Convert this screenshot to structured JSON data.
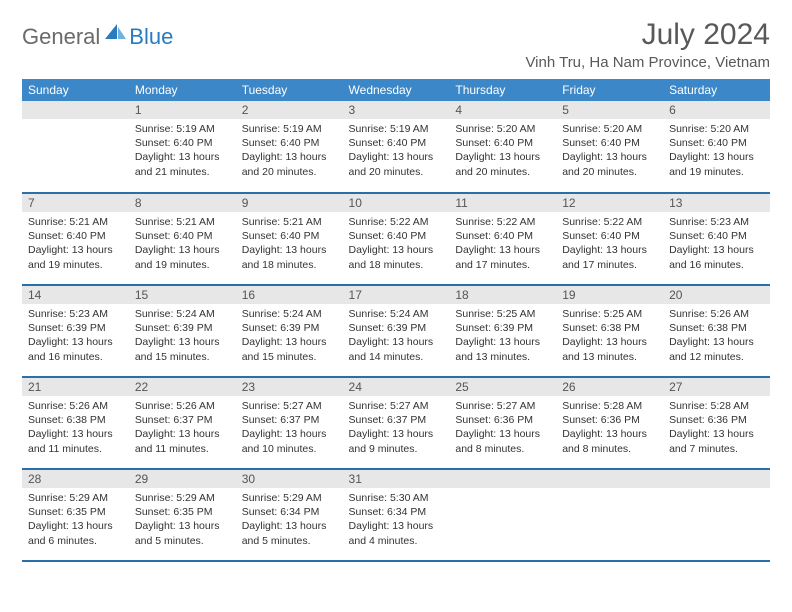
{
  "logo": {
    "general": "General",
    "blue": "Blue"
  },
  "title": "July 2024",
  "location": "Vinh Tru, Ha Nam Province, Vietnam",
  "colors": {
    "header_bg": "#3b87c8",
    "daynum_bg": "#e7e7e7",
    "row_border": "#2a6fa8",
    "title_color": "#595959",
    "logo_gray": "#6a6a6a",
    "logo_blue": "#2a7bbf"
  },
  "weekdays": [
    "Sunday",
    "Monday",
    "Tuesday",
    "Wednesday",
    "Thursday",
    "Friday",
    "Saturday"
  ],
  "weeks": [
    [
      {
        "n": "",
        "sr": "",
        "ss": "",
        "dl": ""
      },
      {
        "n": "1",
        "sr": "Sunrise: 5:19 AM",
        "ss": "Sunset: 6:40 PM",
        "dl": "Daylight: 13 hours and 21 minutes."
      },
      {
        "n": "2",
        "sr": "Sunrise: 5:19 AM",
        "ss": "Sunset: 6:40 PM",
        "dl": "Daylight: 13 hours and 20 minutes."
      },
      {
        "n": "3",
        "sr": "Sunrise: 5:19 AM",
        "ss": "Sunset: 6:40 PM",
        "dl": "Daylight: 13 hours and 20 minutes."
      },
      {
        "n": "4",
        "sr": "Sunrise: 5:20 AM",
        "ss": "Sunset: 6:40 PM",
        "dl": "Daylight: 13 hours and 20 minutes."
      },
      {
        "n": "5",
        "sr": "Sunrise: 5:20 AM",
        "ss": "Sunset: 6:40 PM",
        "dl": "Daylight: 13 hours and 20 minutes."
      },
      {
        "n": "6",
        "sr": "Sunrise: 5:20 AM",
        "ss": "Sunset: 6:40 PM",
        "dl": "Daylight: 13 hours and 19 minutes."
      }
    ],
    [
      {
        "n": "7",
        "sr": "Sunrise: 5:21 AM",
        "ss": "Sunset: 6:40 PM",
        "dl": "Daylight: 13 hours and 19 minutes."
      },
      {
        "n": "8",
        "sr": "Sunrise: 5:21 AM",
        "ss": "Sunset: 6:40 PM",
        "dl": "Daylight: 13 hours and 19 minutes."
      },
      {
        "n": "9",
        "sr": "Sunrise: 5:21 AM",
        "ss": "Sunset: 6:40 PM",
        "dl": "Daylight: 13 hours and 18 minutes."
      },
      {
        "n": "10",
        "sr": "Sunrise: 5:22 AM",
        "ss": "Sunset: 6:40 PM",
        "dl": "Daylight: 13 hours and 18 minutes."
      },
      {
        "n": "11",
        "sr": "Sunrise: 5:22 AM",
        "ss": "Sunset: 6:40 PM",
        "dl": "Daylight: 13 hours and 17 minutes."
      },
      {
        "n": "12",
        "sr": "Sunrise: 5:22 AM",
        "ss": "Sunset: 6:40 PM",
        "dl": "Daylight: 13 hours and 17 minutes."
      },
      {
        "n": "13",
        "sr": "Sunrise: 5:23 AM",
        "ss": "Sunset: 6:40 PM",
        "dl": "Daylight: 13 hours and 16 minutes."
      }
    ],
    [
      {
        "n": "14",
        "sr": "Sunrise: 5:23 AM",
        "ss": "Sunset: 6:39 PM",
        "dl": "Daylight: 13 hours and 16 minutes."
      },
      {
        "n": "15",
        "sr": "Sunrise: 5:24 AM",
        "ss": "Sunset: 6:39 PM",
        "dl": "Daylight: 13 hours and 15 minutes."
      },
      {
        "n": "16",
        "sr": "Sunrise: 5:24 AM",
        "ss": "Sunset: 6:39 PM",
        "dl": "Daylight: 13 hours and 15 minutes."
      },
      {
        "n": "17",
        "sr": "Sunrise: 5:24 AM",
        "ss": "Sunset: 6:39 PM",
        "dl": "Daylight: 13 hours and 14 minutes."
      },
      {
        "n": "18",
        "sr": "Sunrise: 5:25 AM",
        "ss": "Sunset: 6:39 PM",
        "dl": "Daylight: 13 hours and 13 minutes."
      },
      {
        "n": "19",
        "sr": "Sunrise: 5:25 AM",
        "ss": "Sunset: 6:38 PM",
        "dl": "Daylight: 13 hours and 13 minutes."
      },
      {
        "n": "20",
        "sr": "Sunrise: 5:26 AM",
        "ss": "Sunset: 6:38 PM",
        "dl": "Daylight: 13 hours and 12 minutes."
      }
    ],
    [
      {
        "n": "21",
        "sr": "Sunrise: 5:26 AM",
        "ss": "Sunset: 6:38 PM",
        "dl": "Daylight: 13 hours and 11 minutes."
      },
      {
        "n": "22",
        "sr": "Sunrise: 5:26 AM",
        "ss": "Sunset: 6:37 PM",
        "dl": "Daylight: 13 hours and 11 minutes."
      },
      {
        "n": "23",
        "sr": "Sunrise: 5:27 AM",
        "ss": "Sunset: 6:37 PM",
        "dl": "Daylight: 13 hours and 10 minutes."
      },
      {
        "n": "24",
        "sr": "Sunrise: 5:27 AM",
        "ss": "Sunset: 6:37 PM",
        "dl": "Daylight: 13 hours and 9 minutes."
      },
      {
        "n": "25",
        "sr": "Sunrise: 5:27 AM",
        "ss": "Sunset: 6:36 PM",
        "dl": "Daylight: 13 hours and 8 minutes."
      },
      {
        "n": "26",
        "sr": "Sunrise: 5:28 AM",
        "ss": "Sunset: 6:36 PM",
        "dl": "Daylight: 13 hours and 8 minutes."
      },
      {
        "n": "27",
        "sr": "Sunrise: 5:28 AM",
        "ss": "Sunset: 6:36 PM",
        "dl": "Daylight: 13 hours and 7 minutes."
      }
    ],
    [
      {
        "n": "28",
        "sr": "Sunrise: 5:29 AM",
        "ss": "Sunset: 6:35 PM",
        "dl": "Daylight: 13 hours and 6 minutes."
      },
      {
        "n": "29",
        "sr": "Sunrise: 5:29 AM",
        "ss": "Sunset: 6:35 PM",
        "dl": "Daylight: 13 hours and 5 minutes."
      },
      {
        "n": "30",
        "sr": "Sunrise: 5:29 AM",
        "ss": "Sunset: 6:34 PM",
        "dl": "Daylight: 13 hours and 5 minutes."
      },
      {
        "n": "31",
        "sr": "Sunrise: 5:30 AM",
        "ss": "Sunset: 6:34 PM",
        "dl": "Daylight: 13 hours and 4 minutes."
      },
      {
        "n": "",
        "sr": "",
        "ss": "",
        "dl": ""
      },
      {
        "n": "",
        "sr": "",
        "ss": "",
        "dl": ""
      },
      {
        "n": "",
        "sr": "",
        "ss": "",
        "dl": ""
      }
    ]
  ]
}
